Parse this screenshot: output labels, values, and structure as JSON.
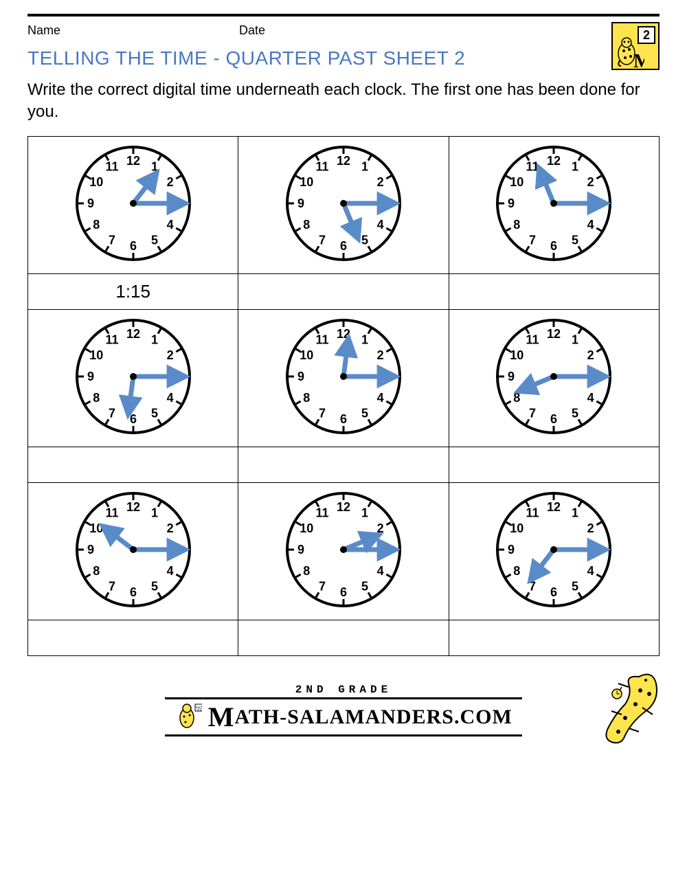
{
  "labels": {
    "name": "Name",
    "date": "Date"
  },
  "badge": {
    "grade_number": "2"
  },
  "title": "TELLING THE TIME - QUARTER PAST SHEET 2",
  "instructions": "Write the correct digital time underneath each clock. The first one has been done for you.",
  "colors": {
    "title": "#4a77c4",
    "hand": "#5a8bc9",
    "clock_stroke": "#000000",
    "badge_bg": "#ffe44d"
  },
  "clock_style": {
    "radius": 82,
    "stroke_width": 4,
    "tick_len": 10,
    "hour_hand_len": 44,
    "minute_hand_len": 64,
    "hand_width": 7,
    "number_font_size": 18,
    "number_radius": 62
  },
  "clocks": [
    [
      {
        "hour_angle_deg": 37.5,
        "minute_angle_deg": 90,
        "answer": "1:15"
      },
      {
        "hour_angle_deg": 157.5,
        "minute_angle_deg": 90,
        "answer": ""
      },
      {
        "hour_angle_deg": 337.5,
        "minute_angle_deg": 90,
        "answer": ""
      }
    ],
    [
      {
        "hour_angle_deg": 187.5,
        "minute_angle_deg": 90,
        "answer": ""
      },
      {
        "hour_angle_deg": 7.5,
        "minute_angle_deg": 90,
        "answer": ""
      },
      {
        "hour_angle_deg": 247.5,
        "minute_angle_deg": 90,
        "answer": ""
      }
    ],
    [
      {
        "hour_angle_deg": 307.5,
        "minute_angle_deg": 90,
        "answer": ""
      },
      {
        "hour_angle_deg": 67.5,
        "minute_angle_deg": 90,
        "answer": ""
      },
      {
        "hour_angle_deg": 217.5,
        "minute_angle_deg": 90,
        "answer": ""
      }
    ]
  ],
  "footer": {
    "grade_text": "2ND GRADE",
    "brand_text": "ATH-SALAMANDERS.COM"
  }
}
